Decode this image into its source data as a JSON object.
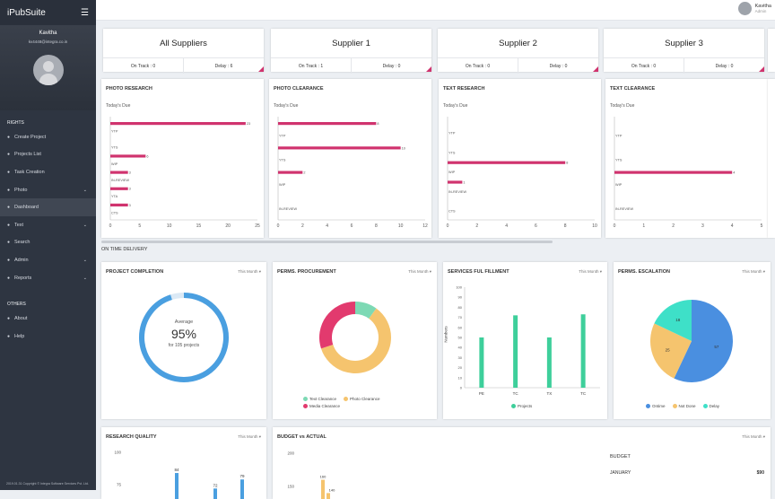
{
  "app": {
    "name": "iPubSuite"
  },
  "profile": {
    "name": "Kavitha",
    "email": "kv4448@integra.co.in"
  },
  "sidebar": {
    "section1": "RIGHTS",
    "items": [
      {
        "label": "Create Project",
        "icon": "plus-icon",
        "chev": ""
      },
      {
        "label": "Projects List",
        "icon": "list-icon",
        "chev": ""
      },
      {
        "label": "Task Creation",
        "icon": "task-icon",
        "chev": ""
      },
      {
        "label": "Photo",
        "icon": "photo-icon",
        "chev": "⌄"
      },
      {
        "label": "Dashboard",
        "icon": "dashboard-icon",
        "chev": "",
        "active": true
      },
      {
        "label": "Text",
        "icon": "text-icon",
        "chev": "⌄"
      },
      {
        "label": "Search",
        "icon": "search-icon",
        "chev": ""
      },
      {
        "label": "Admin",
        "icon": "admin-icon",
        "chev": "⌄"
      },
      {
        "label": "Reports",
        "icon": "reports-icon",
        "chev": "⌄"
      }
    ],
    "section2": "OTHERS",
    "others": [
      {
        "label": "About",
        "icon": "about-icon"
      },
      {
        "label": "Help",
        "icon": "help-icon"
      }
    ],
    "footer": "2019.01.31 Copyright © Integra Software Services Pvt. Ltd."
  },
  "topbar": {
    "user": "Kavitha",
    "role": "Admin"
  },
  "suppliers": [
    {
      "title": "All Suppliers",
      "ontrack": "On Track : 0",
      "delay": "Delay : 6"
    },
    {
      "title": "Supplier 1",
      "ontrack": "On Track : 1",
      "delay": "Delay : 0"
    },
    {
      "title": "Supplier 2",
      "ontrack": "On Track : 0",
      "delay": "Delay : 0"
    },
    {
      "title": "Supplier 3",
      "ontrack": "On Track : 0",
      "delay": "Delay : 0"
    }
  ],
  "colors": {
    "accent": "#d0336e",
    "blue": "#4a9fe0",
    "green": "#3ecf9b",
    "yellow": "#f5c46e",
    "pink": "#e23a6e",
    "sidebar": "#2e3541"
  },
  "hbar_charts": [
    {
      "title": "PHOTO RESEARCH",
      "sub": "Today's Due",
      "xmax": 25,
      "ticks": [
        0,
        5,
        10,
        15,
        20,
        25
      ],
      "rows": [
        {
          "label": "YTP",
          "value": 23
        },
        {
          "label": "YTS",
          "value": null
        },
        {
          "label": "WIP",
          "value": 6
        },
        {
          "label": "IN-REVIEW",
          "value": 3
        },
        {
          "label": "YTA",
          "value": 3
        },
        {
          "label": "CTS",
          "value": 3
        }
      ]
    },
    {
      "title": "PHOTO CLEARANCE",
      "sub": "Today's Due",
      "xmax": 12,
      "ticks": [
        0,
        2,
        4,
        6,
        8,
        10,
        12
      ],
      "rows": [
        {
          "label": "YTP",
          "value": 8
        },
        {
          "label": "YTS",
          "value": 10
        },
        {
          "label": "WIP",
          "value": 2
        },
        {
          "label": "IN-REVIEW",
          "value": null
        }
      ]
    },
    {
      "title": "TEXT RESEARCH",
      "sub": "Today's Due",
      "xmax": 10,
      "ticks": [
        0,
        2,
        4,
        6,
        8,
        10
      ],
      "rows": [
        {
          "label": "YTP",
          "value": null
        },
        {
          "label": "YTS",
          "value": null
        },
        {
          "label": "WIP",
          "value": 8
        },
        {
          "label": "IN-REVIEW",
          "value": 1
        },
        {
          "label": "CTS",
          "value": null
        }
      ]
    },
    {
      "title": "TEXT CLEARANCE",
      "sub": "Today's Due",
      "xmax": 5,
      "ticks": [
        0,
        1,
        2,
        3,
        4,
        5
      ],
      "rows": [
        {
          "label": "YTP",
          "value": null
        },
        {
          "label": "YTS",
          "value": null
        },
        {
          "label": "WIP",
          "value": 4
        },
        {
          "label": "IN-REVIEW",
          "value": null
        }
      ]
    }
  ],
  "on_time": "ON TIME DELIVERY",
  "this_month": "This Month",
  "completion": {
    "title": "PROJECT COMPLETION",
    "avg": "Average",
    "pct": "95%",
    "sub": "for 105 projects",
    "value": 95
  },
  "procurement": {
    "title": "PERMS. PROCUREMENT",
    "chart_data": {
      "type": "pie",
      "labels": [
        "Text Clearance",
        "Photo Clearance",
        "Media Clearance"
      ],
      "values": [
        10,
        60,
        30
      ],
      "colors": [
        "#7dd9b4",
        "#f5c46e",
        "#e23a6e"
      ]
    }
  },
  "fulfillment": {
    "title": "SERVICES FUL FILLMENT",
    "ylabel": "Numbers",
    "legend": "Projects",
    "chart_data": {
      "type": "bar",
      "categories": [
        "PE",
        "TC",
        "TX",
        "TC"
      ],
      "values": [
        50,
        72,
        50,
        73
      ],
      "ylim": [
        0,
        100
      ],
      "yticks": [
        0,
        10,
        20,
        30,
        40,
        50,
        60,
        70,
        80,
        90,
        100
      ]
    }
  },
  "escalation": {
    "title": "PERMS. ESCALATION",
    "chart_data": {
      "type": "pie",
      "labels": [
        "Ontime",
        "Not Done",
        "Delay"
      ],
      "values": [
        57,
        25,
        18
      ],
      "display": [
        "57",
        "25",
        "18"
      ],
      "colors": [
        "#4a8fe0",
        "#f5c46e",
        "#3ee0c8"
      ]
    }
  },
  "quality": {
    "title": "RESEARCH QUALITY",
    "yticks": [
      "100",
      "75"
    ],
    "chart_data": {
      "type": "bar",
      "values": [
        84,
        72,
        79
      ],
      "labels": [
        "84",
        "72",
        "79"
      ]
    }
  },
  "budget": {
    "title": "BUDGET vs ACTUAL",
    "yticks": [
      "200",
      "150"
    ],
    "chart_data": {
      "type": "bar",
      "values": [
        160,
        140
      ],
      "labels": [
        "160",
        "140"
      ]
    }
  },
  "budget_list": {
    "title": "BUDGET",
    "rows": [
      {
        "month": "JANUARY",
        "amount": "$90"
      }
    ]
  }
}
